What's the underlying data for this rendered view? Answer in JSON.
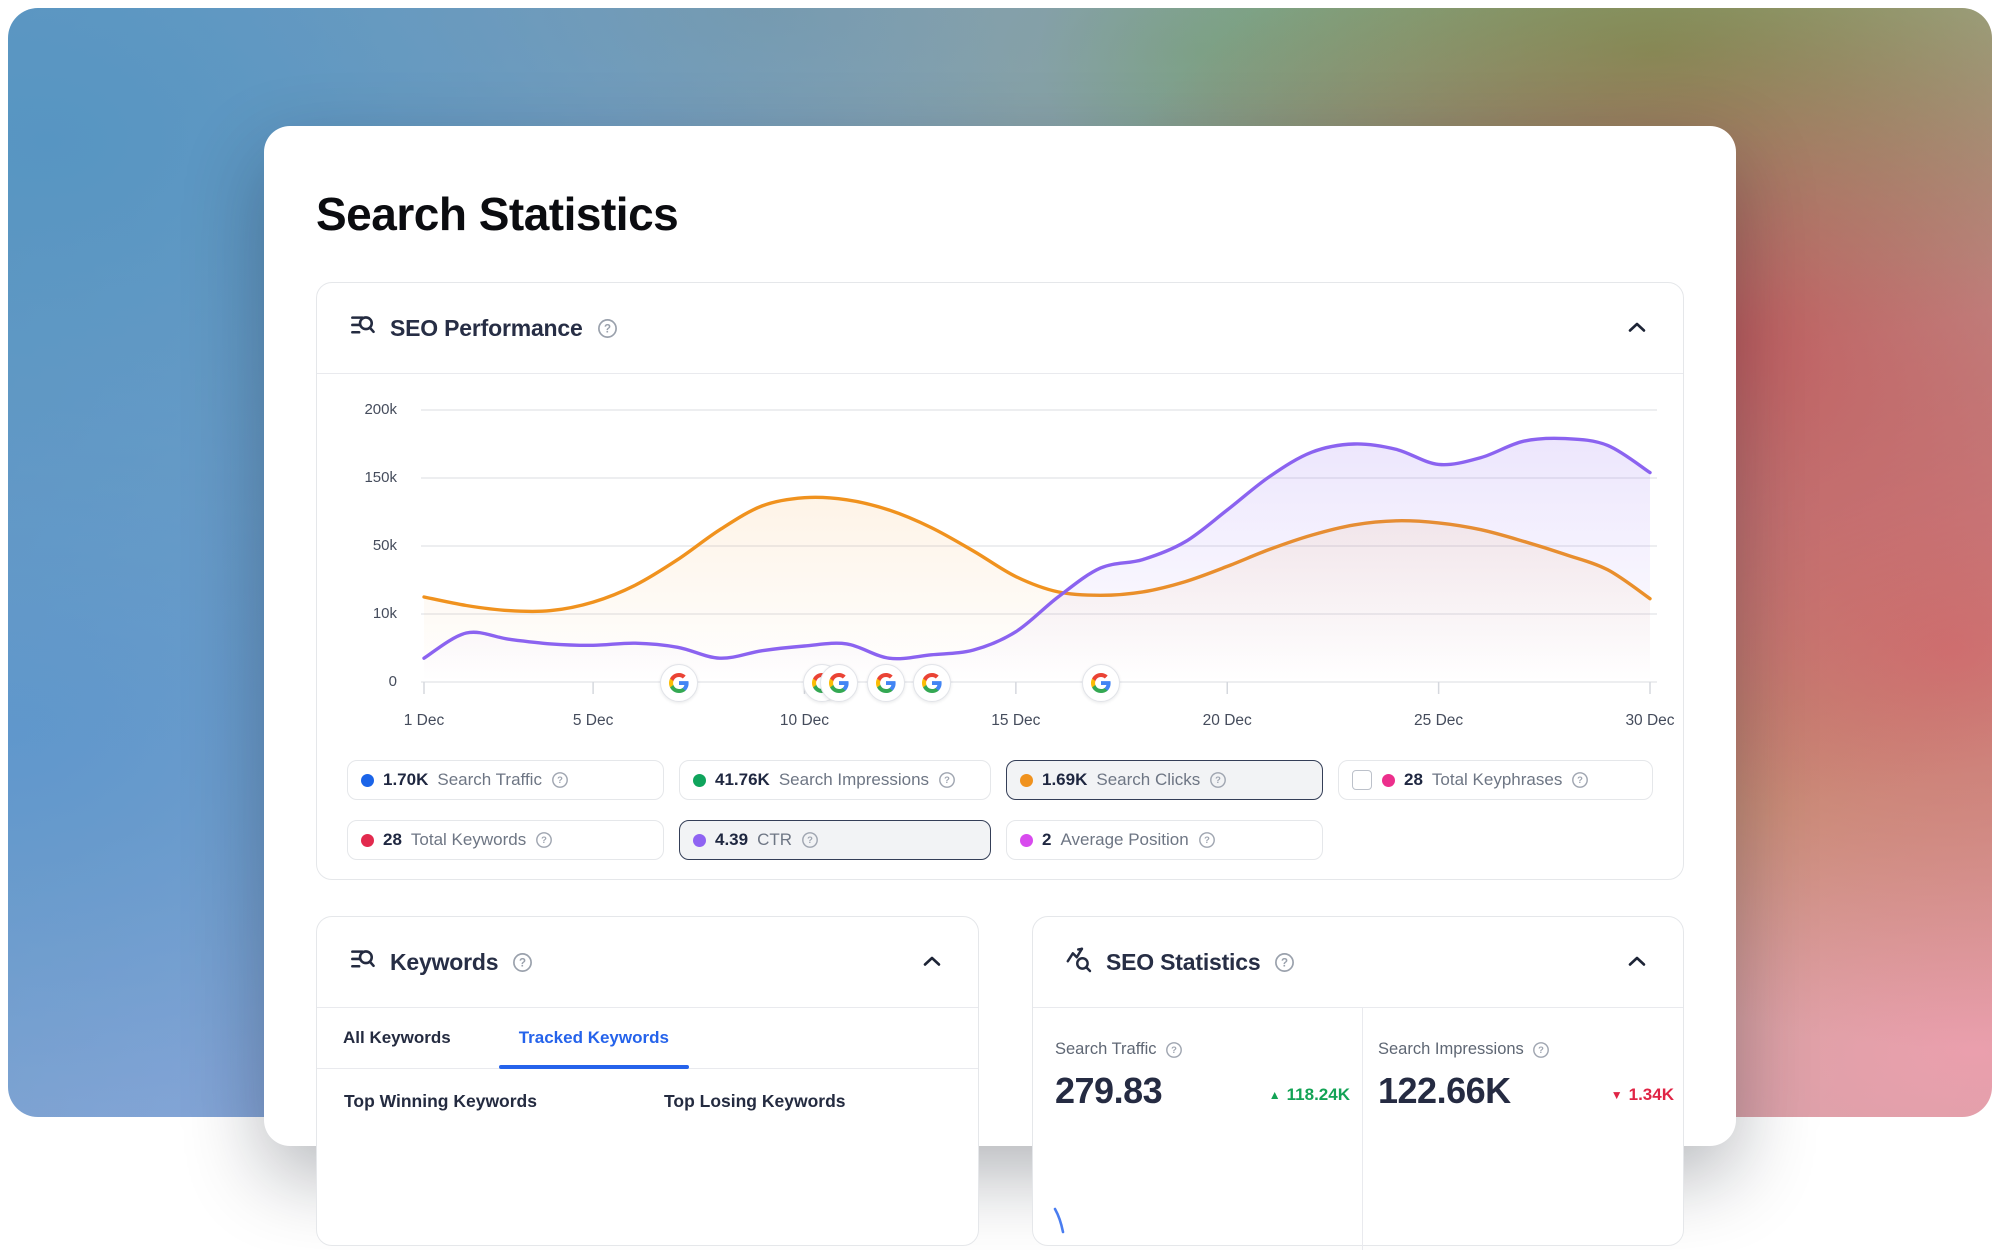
{
  "page_title": "Search Statistics",
  "seo_performance": {
    "title": "SEO Performance",
    "legend_rows": [
      [
        {
          "key": "search-traffic",
          "dot": "#1b64e8",
          "value": "1.70K",
          "label": "Search Traffic",
          "selected": false,
          "checkbox": false
        },
        {
          "key": "search-impressions",
          "dot": "#0fa45c",
          "value": "41.76K",
          "label": "Search Impressions",
          "selected": false,
          "checkbox": false
        },
        {
          "key": "search-clicks",
          "dot": "#f0921e",
          "value": "1.69K",
          "label": "Search Clicks",
          "selected": true,
          "checkbox": false
        },
        {
          "key": "total-keyphrases",
          "dot": "#ec2f8c",
          "value": "28",
          "label": "Total Keyphrases",
          "selected": false,
          "checkbox": true
        }
      ],
      [
        {
          "key": "total-keywords",
          "dot": "#e22a4e",
          "value": "28",
          "label": "Total Keywords",
          "selected": false,
          "checkbox": false
        },
        {
          "key": "ctr",
          "dot": "#8f63f2",
          "value": "4.39",
          "label": "CTR",
          "selected": true,
          "checkbox": false
        },
        {
          "key": "average-position",
          "dot": "#d84bee",
          "value": "2",
          "label": "Average Position",
          "selected": false,
          "checkbox": false
        }
      ]
    ]
  },
  "keywords": {
    "title": "Keywords",
    "tabs": [
      {
        "label": "All Keywords",
        "active": false
      },
      {
        "label": "Tracked Keywords",
        "active": true
      }
    ],
    "columns": [
      "Top Winning Keywords",
      "Top Losing Keywords"
    ]
  },
  "seo_statistics": {
    "title": "SEO Statistics",
    "metrics": [
      {
        "label": "Search Traffic",
        "value": "279.83",
        "delta": "118.24K",
        "direction": "up"
      },
      {
        "label": "Search Impressions",
        "value": "122.66K",
        "delta": "1.34K",
        "direction": "down"
      }
    ]
  },
  "colors": {
    "tab_active": "#2563eb",
    "delta_up": "#13a355",
    "delta_down": "#e02445",
    "line_search_clicks": "#f0921e",
    "line_ctr": "#8b63f0",
    "selected_chip_border": "#343e57"
  },
  "chart_data": {
    "type": "line",
    "title": "SEO Performance",
    "x_unit": "day of December",
    "x": [
      1,
      2,
      3,
      4,
      5,
      6,
      7,
      8,
      9,
      10,
      11,
      12,
      13,
      14,
      15,
      16,
      17,
      18,
      19,
      20,
      21,
      22,
      23,
      24,
      25,
      26,
      27,
      28,
      29,
      30
    ],
    "series": [
      {
        "name": "Search Clicks",
        "color": "#f0921e",
        "values": [
          20,
          15,
          12,
          12,
          17,
          27,
          42,
          74,
          109,
          121,
          118,
          103,
          77,
          47,
          32,
          23,
          21,
          23,
          29,
          38,
          48,
          66,
          81,
          87,
          84,
          74,
          57,
          45,
          36,
          19
        ]
      },
      {
        "name": "CTR",
        "color": "#8b63f0",
        "values": [
          3.5,
          7.2,
          6.3,
          5.6,
          5.4,
          5.7,
          5.1,
          3.5,
          4.6,
          5.3,
          5.6,
          3.5,
          4,
          4.7,
          7.4,
          20,
          37,
          42,
          56,
          103,
          151,
          169,
          175,
          171,
          160,
          165,
          177,
          179,
          174,
          154
        ]
      }
    ],
    "values_unit": "thousands (axis units)",
    "y_axis": {
      "tick_values": [
        0,
        10,
        50,
        150,
        200
      ],
      "tick_labels": [
        "0",
        "10k",
        "50k",
        "150k",
        "200k"
      ],
      "note": "non-linear axis: tick labels 0/10k/50k/150k/200k are equally spaced"
    },
    "x_ticks": {
      "days": [
        1,
        5,
        10,
        15,
        20,
        25,
        30
      ],
      "labels": [
        "1 Dec",
        "5 Dec",
        "10 Dec",
        "15 Dec",
        "20 Dec",
        "25 Dec",
        "30 Dec"
      ]
    },
    "google_event_days": [
      7,
      10.4,
      10.8,
      11.9,
      13,
      17
    ],
    "grid": "horizontal",
    "legend_position": "below"
  }
}
